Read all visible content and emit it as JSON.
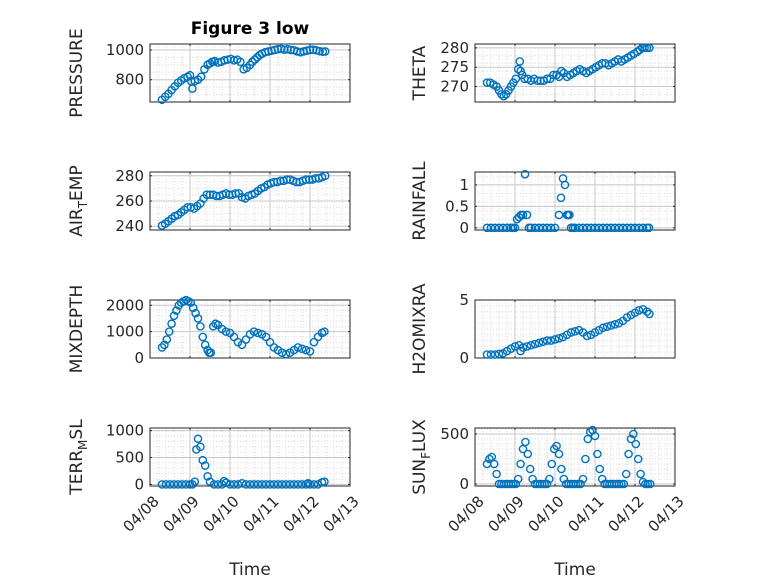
{
  "figure": {
    "title": "Figure 3 low",
    "x_axis_label": "Time"
  },
  "colors": {
    "marker": "#0072BD",
    "axis": "#262626",
    "grid": "#d9d9d9"
  },
  "chart_data": [
    {
      "type": "scatter",
      "name": "pressure",
      "ylabel": "PRESSURE",
      "ylim": [
        650,
        1040
      ],
      "yticks": [
        800,
        1000
      ],
      "ytick_labels": [
        "800",
        "1000"
      ],
      "xlim": [
        0,
        5
      ],
      "xticks": [
        0,
        1,
        2,
        3,
        4,
        5
      ],
      "xtick_labels": [
        "04/08",
        "04/09",
        "04/10",
        "04/11",
        "04/12",
        "04/13"
      ],
      "grid": true,
      "marker": "open-circle",
      "x": [
        0.3,
        0.38,
        0.46,
        0.54,
        0.62,
        0.7,
        0.78,
        0.86,
        0.94,
        1.0,
        1.03,
        1.06,
        1.12,
        1.2,
        1.28,
        1.36,
        1.44,
        1.5,
        1.56,
        1.62,
        1.7,
        1.78,
        1.86,
        1.94,
        2.02,
        2.1,
        2.18,
        2.26,
        2.34,
        2.42,
        2.5,
        2.56,
        2.62,
        2.68,
        2.74,
        2.8,
        2.88,
        2.96,
        3.04,
        3.12,
        3.2,
        3.28,
        3.36,
        3.44,
        3.52,
        3.6,
        3.68,
        3.76,
        3.84,
        3.92,
        4.0,
        4.08,
        4.16,
        4.24,
        4.32,
        4.38
      ],
      "y": [
        665,
        685,
        705,
        730,
        755,
        780,
        795,
        810,
        820,
        830,
        790,
        740,
        790,
        800,
        820,
        870,
        900,
        910,
        920,
        925,
        915,
        920,
        930,
        935,
        940,
        930,
        935,
        920,
        870,
        880,
        900,
        920,
        935,
        950,
        965,
        975,
        985,
        990,
        995,
        1000,
        1005,
        1008,
        1002,
        1005,
        1000,
        998,
        990,
        985,
        990,
        995,
        1000,
        1002,
        998,
        992,
        988,
        990
      ]
    },
    {
      "type": "scatter",
      "name": "theta",
      "ylabel": "THETA",
      "ylim": [
        266,
        281
      ],
      "yticks": [
        270,
        275,
        280
      ],
      "ytick_labels": [
        "270",
        "275",
        "280"
      ],
      "xlim": [
        0,
        5
      ],
      "xticks": [
        0,
        1,
        2,
        3,
        4,
        5
      ],
      "xtick_labels": [
        "04/08",
        "04/09",
        "04/10",
        "04/11",
        "04/12",
        "04/13"
      ],
      "grid": true,
      "marker": "open-circle",
      "x": [
        0.3,
        0.38,
        0.46,
        0.54,
        0.6,
        0.66,
        0.72,
        0.78,
        0.84,
        0.9,
        0.96,
        1.02,
        1.08,
        1.12,
        1.14,
        1.18,
        1.24,
        1.32,
        1.4,
        1.48,
        1.56,
        1.64,
        1.72,
        1.8,
        1.88,
        1.96,
        2.04,
        2.1,
        2.16,
        2.22,
        2.3,
        2.38,
        2.46,
        2.54,
        2.62,
        2.7,
        2.78,
        2.86,
        2.94,
        3.02,
        3.1,
        3.18,
        3.26,
        3.34,
        3.42,
        3.5,
        3.58,
        3.66,
        3.74,
        3.82,
        3.9,
        3.98,
        4.06,
        4.12,
        4.18,
        4.24,
        4.3,
        4.36
      ],
      "y": [
        271,
        271,
        270.5,
        270,
        269,
        268,
        267.5,
        268,
        269,
        270,
        271,
        272,
        274.5,
        276.5,
        274,
        273,
        272,
        272,
        271.5,
        272,
        271.5,
        271.5,
        271.5,
        272,
        272,
        273,
        273,
        272.5,
        274,
        273.5,
        272.5,
        273,
        273.5,
        274,
        274.5,
        274,
        273.5,
        274,
        274.5,
        275,
        275.5,
        276,
        276,
        275.5,
        276,
        276.5,
        277,
        276.5,
        277,
        277.5,
        278,
        278.5,
        279,
        279.5,
        280,
        280,
        280,
        280
      ]
    },
    {
      "type": "scatter",
      "name": "air_temp",
      "ylabel": "AIR_TEMP",
      "ylim": [
        237,
        283
      ],
      "yticks": [
        240,
        260,
        280
      ],
      "ytick_labels": [
        "240",
        "260",
        "280"
      ],
      "xlim": [
        0,
        5
      ],
      "xticks": [
        0,
        1,
        2,
        3,
        4,
        5
      ],
      "xtick_labels": [
        "04/08",
        "04/09",
        "04/10",
        "04/11",
        "04/12",
        "04/13"
      ],
      "grid": true,
      "marker": "open-circle",
      "x": [
        0.3,
        0.38,
        0.46,
        0.54,
        0.62,
        0.7,
        0.78,
        0.86,
        0.94,
        1.02,
        1.1,
        1.18,
        1.26,
        1.34,
        1.42,
        1.5,
        1.58,
        1.66,
        1.74,
        1.82,
        1.9,
        1.98,
        2.06,
        2.14,
        2.22,
        2.3,
        2.38,
        2.46,
        2.54,
        2.62,
        2.7,
        2.78,
        2.86,
        2.94,
        3.02,
        3.1,
        3.18,
        3.26,
        3.34,
        3.42,
        3.5,
        3.58,
        3.66,
        3.74,
        3.82,
        3.9,
        3.98,
        4.06,
        4.14,
        4.22,
        4.3,
        4.38
      ],
      "y": [
        240.5,
        242,
        244,
        246,
        248,
        249,
        251,
        253,
        255,
        255,
        254,
        256,
        258,
        262,
        265,
        265,
        265,
        264,
        264,
        265,
        266,
        265,
        265,
        266,
        266,
        263,
        262,
        264,
        265,
        266,
        268,
        270,
        271,
        273,
        274,
        275,
        275,
        276,
        276,
        277,
        277,
        276,
        275,
        275,
        276,
        277,
        277,
        277,
        278,
        278,
        279,
        280
      ]
    },
    {
      "type": "scatter",
      "name": "rainfall",
      "ylabel": "RAINFALL",
      "ylim": [
        -0.05,
        1.3
      ],
      "yticks": [
        0,
        0.5,
        1
      ],
      "ytick_labels": [
        "0",
        "0.5",
        "1"
      ],
      "xlim": [
        0,
        5
      ],
      "xticks": [
        0,
        1,
        2,
        3,
        4,
        5
      ],
      "xtick_labels": [
        "04/08",
        "04/09",
        "04/10",
        "04/11",
        "04/12",
        "04/13"
      ],
      "grid": true,
      "marker": "open-circle",
      "x": [
        0.3,
        0.4,
        0.5,
        0.6,
        0.7,
        0.8,
        0.9,
        0.95,
        1.0,
        1.05,
        1.1,
        1.15,
        1.2,
        1.25,
        1.3,
        1.35,
        1.4,
        1.5,
        1.6,
        1.7,
        1.8,
        1.9,
        2.0,
        2.1,
        2.15,
        2.2,
        2.25,
        2.3,
        2.33,
        2.36,
        2.4,
        2.45,
        2.5,
        2.6,
        2.7,
        2.8,
        2.9,
        3.0,
        3.1,
        3.2,
        3.3,
        3.4,
        3.5,
        3.6,
        3.7,
        3.8,
        3.9,
        4.0,
        4.1,
        4.2,
        4.3,
        4.35
      ],
      "y": [
        0,
        0,
        0,
        0,
        0,
        0,
        0,
        0,
        0,
        0.2,
        0.25,
        0.3,
        0.3,
        1.25,
        0.3,
        0,
        0,
        0,
        0,
        0,
        0,
        0,
        0,
        0.3,
        0.7,
        1.15,
        1.0,
        0.3,
        0.3,
        0.3,
        0,
        0,
        0,
        0,
        0,
        0,
        0,
        0,
        0,
        0,
        0,
        0,
        0,
        0,
        0,
        0,
        0,
        0,
        0,
        0,
        0,
        0
      ]
    },
    {
      "type": "scatter",
      "name": "mixdepth",
      "ylabel": "MIXDEPTH",
      "ylim": [
        0,
        2200
      ],
      "yticks": [
        0,
        1000,
        2000
      ],
      "ytick_labels": [
        "0",
        "1000",
        "2000"
      ],
      "xlim": [
        0,
        5
      ],
      "xticks": [
        0,
        1,
        2,
        3,
        4,
        5
      ],
      "xtick_labels": [
        "04/08",
        "04/09",
        "04/10",
        "04/11",
        "04/12",
        "04/13"
      ],
      "grid": true,
      "marker": "open-circle",
      "x": [
        0.3,
        0.36,
        0.42,
        0.48,
        0.54,
        0.6,
        0.66,
        0.72,
        0.78,
        0.84,
        0.9,
        0.96,
        1.02,
        1.08,
        1.14,
        1.2,
        1.26,
        1.32,
        1.38,
        1.44,
        1.48,
        1.52,
        1.58,
        1.64,
        1.7,
        1.8,
        1.9,
        2.0,
        2.1,
        2.2,
        2.3,
        2.4,
        2.5,
        2.6,
        2.7,
        2.8,
        2.9,
        3.0,
        3.1,
        3.2,
        3.3,
        3.4,
        3.5,
        3.6,
        3.7,
        3.8,
        3.9,
        4.0,
        4.1,
        4.2,
        4.3,
        4.36
      ],
      "y": [
        400,
        500,
        700,
        1000,
        1300,
        1600,
        1800,
        2000,
        2100,
        2150,
        2200,
        2150,
        2100,
        1900,
        1700,
        1500,
        1200,
        800,
        500,
        300,
        200,
        200,
        1200,
        1300,
        1250,
        1100,
        1000,
        950,
        800,
        600,
        500,
        700,
        900,
        1000,
        950,
        900,
        800,
        600,
        400,
        300,
        200,
        150,
        200,
        300,
        400,
        350,
        300,
        250,
        600,
        800,
        950,
        1000
      ]
    },
    {
      "type": "scatter",
      "name": "h2omixra",
      "ylabel": "H2OMIXRA",
      "ylim": [
        0,
        5
      ],
      "yticks": [
        0,
        5
      ],
      "ytick_labels": [
        "0",
        "5"
      ],
      "xlim": [
        0,
        5
      ],
      "xticks": [
        0,
        1,
        2,
        3,
        4,
        5
      ],
      "xtick_labels": [
        "04/08",
        "04/09",
        "04/10",
        "04/11",
        "04/12",
        "04/13"
      ],
      "grid": true,
      "marker": "open-circle",
      "x": [
        0.3,
        0.4,
        0.5,
        0.6,
        0.7,
        0.8,
        0.9,
        1.0,
        1.1,
        1.14,
        1.2,
        1.3,
        1.4,
        1.5,
        1.6,
        1.7,
        1.8,
        1.9,
        2.0,
        2.1,
        2.2,
        2.3,
        2.4,
        2.5,
        2.6,
        2.7,
        2.8,
        2.9,
        3.0,
        3.1,
        3.2,
        3.3,
        3.4,
        3.5,
        3.6,
        3.7,
        3.8,
        3.9,
        4.0,
        4.1,
        4.2,
        4.3,
        4.36
      ],
      "y": [
        0.3,
        0.3,
        0.3,
        0.35,
        0.4,
        0.6,
        0.8,
        1.0,
        1.1,
        0.6,
        0.9,
        1.0,
        1.1,
        1.2,
        1.3,
        1.4,
        1.5,
        1.5,
        1.6,
        1.7,
        1.8,
        2.0,
        2.2,
        2.3,
        2.4,
        2.2,
        1.9,
        2.0,
        2.2,
        2.4,
        2.6,
        2.7,
        2.8,
        2.9,
        3.0,
        3.2,
        3.5,
        3.7,
        3.9,
        4.1,
        4.2,
        4.0,
        3.8
      ]
    },
    {
      "type": "scatter",
      "name": "terr_msl",
      "ylabel": "TERR_MSL",
      "ylim": [
        -30,
        1050
      ],
      "yticks": [
        0,
        500,
        1000
      ],
      "ytick_labels": [
        "0",
        "500",
        "1000"
      ],
      "xlim": [
        0,
        5
      ],
      "xticks": [
        0,
        1,
        2,
        3,
        4,
        5
      ],
      "xtick_labels": [
        "04/08",
        "04/09",
        "04/10",
        "04/11",
        "04/12",
        "04/13"
      ],
      "grid": true,
      "marker": "open-circle",
      "x": [
        0.3,
        0.4,
        0.5,
        0.6,
        0.7,
        0.8,
        0.9,
        1.0,
        1.06,
        1.12,
        1.16,
        1.2,
        1.26,
        1.32,
        1.38,
        1.44,
        1.5,
        1.6,
        1.7,
        1.8,
        1.85,
        1.9,
        2.0,
        2.1,
        2.2,
        2.3,
        2.4,
        2.5,
        2.6,
        2.7,
        2.8,
        2.9,
        3.0,
        3.1,
        3.2,
        3.3,
        3.4,
        3.5,
        3.6,
        3.7,
        3.8,
        3.9,
        3.95,
        4.0,
        4.1,
        4.2,
        4.3,
        4.36
      ],
      "y": [
        0,
        0,
        0,
        0,
        0,
        0,
        0,
        0,
        0,
        50,
        650,
        850,
        700,
        450,
        350,
        150,
        50,
        0,
        0,
        0,
        60,
        30,
        0,
        0,
        0,
        20,
        0,
        0,
        0,
        0,
        0,
        0,
        0,
        0,
        0,
        0,
        0,
        0,
        0,
        0,
        0,
        0,
        20,
        0,
        0,
        0,
        40,
        50
      ]
    },
    {
      "type": "scatter",
      "name": "sun_flux",
      "ylabel": "SUN_FLUX",
      "ylim": [
        -20,
        560
      ],
      "yticks": [
        0,
        500
      ],
      "ytick_labels": [
        "0",
        "500"
      ],
      "xlim": [
        0,
        5
      ],
      "xticks": [
        0,
        1,
        2,
        3,
        4,
        5
      ],
      "xtick_labels": [
        "04/08",
        "04/09",
        "04/10",
        "04/11",
        "04/12",
        "04/13"
      ],
      "grid": true,
      "marker": "open-circle",
      "x": [
        0.3,
        0.36,
        0.42,
        0.48,
        0.54,
        0.6,
        0.66,
        0.72,
        0.78,
        0.84,
        0.9,
        0.96,
        1.02,
        1.08,
        1.14,
        1.2,
        1.26,
        1.32,
        1.38,
        1.44,
        1.5,
        1.56,
        1.62,
        1.68,
        1.74,
        1.8,
        1.86,
        1.92,
        1.98,
        2.04,
        2.1,
        2.16,
        2.22,
        2.28,
        2.34,
        2.4,
        2.46,
        2.52,
        2.58,
        2.64,
        2.7,
        2.76,
        2.82,
        2.88,
        2.94,
        3.0,
        3.06,
        3.12,
        3.18,
        3.24,
        3.3,
        3.36,
        3.42,
        3.48,
        3.54,
        3.6,
        3.66,
        3.72,
        3.78,
        3.84,
        3.9,
        3.96,
        4.02,
        4.08,
        4.14,
        4.2,
        4.26,
        4.32,
        4.38
      ],
      "y": [
        200,
        250,
        270,
        200,
        100,
        0,
        0,
        0,
        0,
        0,
        0,
        0,
        0,
        50,
        200,
        350,
        420,
        300,
        150,
        50,
        0,
        0,
        0,
        0,
        0,
        0,
        50,
        200,
        350,
        380,
        300,
        150,
        50,
        0,
        0,
        0,
        0,
        0,
        0,
        0,
        50,
        250,
        450,
        520,
        540,
        480,
        300,
        150,
        50,
        0,
        0,
        0,
        0,
        0,
        0,
        0,
        0,
        0,
        100,
        300,
        450,
        500,
        400,
        250,
        100,
        20,
        0,
        0,
        0
      ]
    }
  ]
}
